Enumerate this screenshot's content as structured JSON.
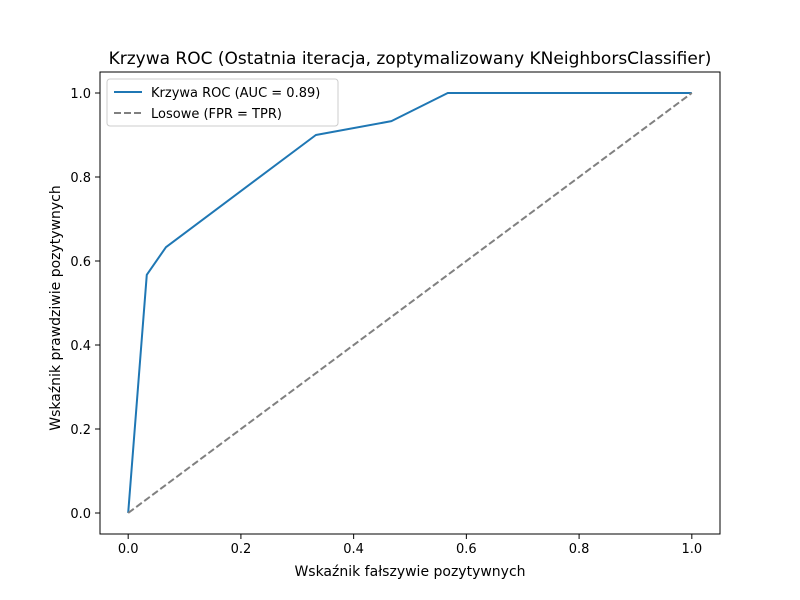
{
  "chart_data": {
    "type": "line",
    "title": "Krzywa ROC (Ostatnia iteracja, zoptymalizowany KNeighborsClassifier)",
    "xlabel": "Wskaźnik fałszywie pozytywnych",
    "ylabel": "Wskaźnik prawdziwie pozytywnych",
    "xlim": [
      -0.05,
      1.05
    ],
    "ylim": [
      -0.05,
      1.05
    ],
    "xticks": [
      0.0,
      0.2,
      0.4,
      0.6,
      0.8,
      1.0
    ],
    "yticks": [
      0.0,
      0.2,
      0.4,
      0.6,
      0.8,
      1.0
    ],
    "xtick_labels": [
      "0.0",
      "0.2",
      "0.4",
      "0.6",
      "0.8",
      "1.0"
    ],
    "ytick_labels": [
      "0.0",
      "0.2",
      "0.4",
      "0.6",
      "0.8",
      "1.0"
    ],
    "grid": false,
    "legend_position": "upper-left",
    "series": [
      {
        "name": "Krzywa ROC (AUC = 0.89)",
        "color": "#1f77b4",
        "style": "solid",
        "x": [
          0.0,
          0.033,
          0.067,
          0.333,
          0.467,
          0.567,
          1.0
        ],
        "y": [
          0.0,
          0.567,
          0.633,
          0.9,
          0.933,
          1.0,
          1.0
        ]
      },
      {
        "name": "Losowe (FPR = TPR)",
        "color": "#808080",
        "style": "dashed",
        "x": [
          0.0,
          1.0
        ],
        "y": [
          0.0,
          1.0
        ]
      }
    ]
  }
}
